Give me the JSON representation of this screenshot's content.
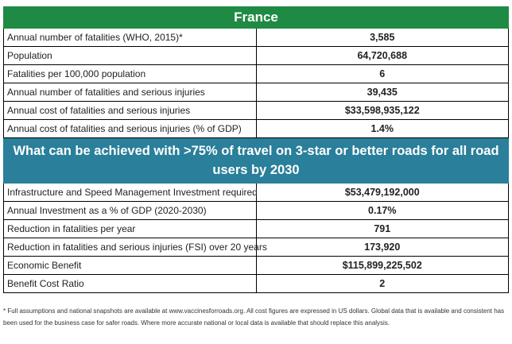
{
  "title": "France",
  "section1_rows": [
    {
      "label": "Annual number of fatalities (WHO, 2015)*",
      "value": "3,585"
    },
    {
      "label": "Population",
      "value": "64,720,688"
    },
    {
      "label": "Fatalities per 100,000 population",
      "value": "6"
    },
    {
      "label": "Annual number of fatalities and serious injuries",
      "value": "39,435"
    },
    {
      "label": "Annual cost of fatalities and serious injuries",
      "value": "$33,598,935,122"
    },
    {
      "label": "Annual cost of fatalities and serious injuries (% of GDP)",
      "value": "1.4%"
    }
  ],
  "banner": "What can be achieved with >75% of travel on 3-star or better roads for all road users by 2030",
  "section2_rows": [
    {
      "label": "Infrastructure and Speed Management Investment required",
      "value": "$53,479,192,000"
    },
    {
      "label": "Annual Investment as a % of GDP (2020-2030)",
      "value": "0.17%"
    },
    {
      "label": "Reduction in fatalities per year",
      "value": "791"
    },
    {
      "label": "Reduction in fatalities and serious injuries (FSI) over 20 years",
      "value": "173,920"
    },
    {
      "label": "Economic Benefit",
      "value": "$115,899,225,502"
    },
    {
      "label": "Benefit Cost Ratio",
      "value": "2"
    }
  ],
  "footnote": "* Full assumptions and national snapshots are available at www.vaccinesforroads.org. All cost figures are expressed in US dollars. Global data that is available and consistent has been used for the business case for safer roads. Where more accurate national or local data is available that should replace this analysis.",
  "colors": {
    "title_bg": "#1f8a43",
    "banner_bg": "#2a7f9a"
  }
}
